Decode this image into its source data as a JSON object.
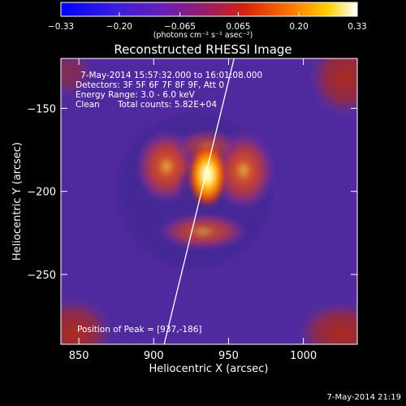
{
  "title": "Reconstructed RHESSI Image",
  "colorbar": {
    "ticks": [
      "-0.33",
      "-0.20",
      "-0.065",
      "0.065",
      "0.20",
      "0.33"
    ],
    "unit_label": "(photons cm⁻² s⁻¹ asec⁻²)",
    "range": [
      -0.33,
      0.33
    ]
  },
  "info": {
    "time_range": "7-May-2014 15:57:32.000 to 16:01:08.000",
    "detectors": "Detectors: 3F 5F 6F 7F 8F 9F, Att 0",
    "energy": "Energy Range: 3.0 - 6.0 keV",
    "method": "Clean",
    "counts": "Total counts: 5.82E+04"
  },
  "peak_label": "Position of Peak = [937,-186]",
  "timestamp": "7-May-2014 21:19",
  "chart_data": {
    "type": "heatmap",
    "title": "Reconstructed RHESSI Image",
    "xlabel": "Heliocentric X (arcsec)",
    "ylabel": "Heliocentric Y (arcsec)",
    "xlim": [
      838,
      1036
    ],
    "ylim": [
      -292,
      -120
    ],
    "x_ticks": [
      850,
      900,
      950,
      1000
    ],
    "y_ticks": [
      -150,
      -200,
      -250
    ],
    "peak": {
      "x": 937,
      "y": -186
    },
    "limb_line": [
      [
        903,
        -292
      ],
      [
        955,
        -120
      ]
    ],
    "colormap": "blue-purple-red-yellow-white",
    "value_range": [
      -0.33,
      0.33
    ]
  },
  "colors": {
    "background": "#000000",
    "plot_base": "#5a2ea4",
    "foreground": "#ffffff"
  }
}
